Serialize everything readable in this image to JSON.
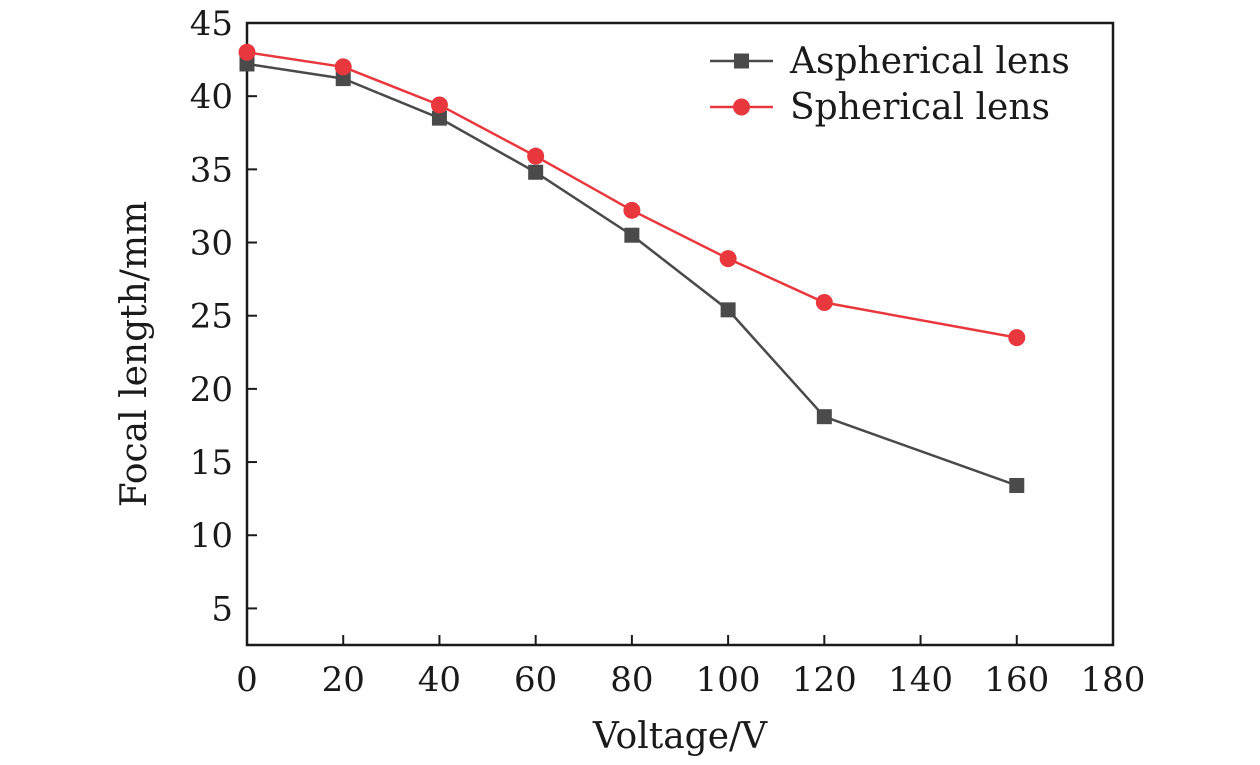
{
  "chart_data": {
    "type": "line",
    "title": "",
    "xlabel": "Voltage/V",
    "ylabel": "Focal length/mm",
    "xlim": [
      0,
      180
    ],
    "ylim": [
      2.5,
      45
    ],
    "x_ticks": [
      0,
      20,
      40,
      60,
      80,
      100,
      120,
      140,
      160,
      180
    ],
    "y_ticks": [
      5,
      10,
      15,
      20,
      25,
      30,
      35,
      40,
      45
    ],
    "grid": false,
    "legend_position": "top-right",
    "x": [
      0,
      20,
      40,
      60,
      80,
      100,
      120,
      160
    ],
    "series": [
      {
        "name": "Aspherical lens",
        "marker": "square",
        "color": "#4a4a4a",
        "values": [
          42.2,
          41.2,
          38.5,
          34.8,
          30.5,
          25.4,
          18.1,
          13.4
        ]
      },
      {
        "name": "Spherical lens",
        "marker": "circle",
        "color": "#e8383d",
        "values": [
          43.0,
          42.0,
          39.4,
          35.9,
          32.2,
          28.9,
          25.9,
          23.5
        ]
      }
    ]
  }
}
